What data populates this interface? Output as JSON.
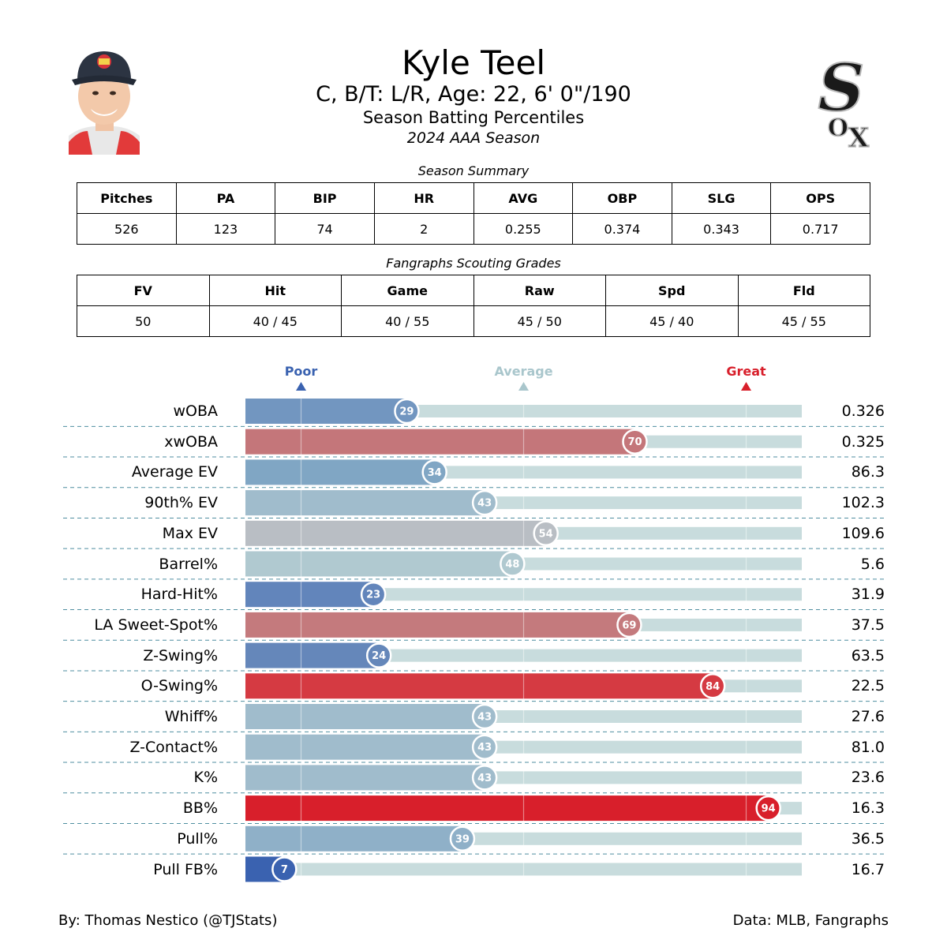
{
  "header": {
    "name": "Kyle Teel",
    "info": "C, B/T: L/R, Age: 22, 6' 0\"/190",
    "subtitle": "Season Batting Percentiles",
    "season": "2024 AAA Season"
  },
  "season_summary": {
    "title": "Season Summary",
    "headers": [
      "Pitches",
      "PA",
      "BIP",
      "HR",
      "AVG",
      "OBP",
      "SLG",
      "OPS"
    ],
    "values": [
      "526",
      "123",
      "74",
      "2",
      "0.255",
      "0.374",
      "0.343",
      "0.717"
    ]
  },
  "scouting_grades": {
    "title": "Fangraphs Scouting Grades",
    "headers": [
      "FV",
      "Hit",
      "Game",
      "Raw",
      "Spd",
      "Fld"
    ],
    "values": [
      "50",
      "40 / 45",
      "40 / 55",
      "45 / 50",
      "45 / 40",
      "45 / 55"
    ]
  },
  "legend": {
    "poor": "Poor",
    "average": "Average",
    "great": "Great",
    "colors": {
      "poor": "#3a62b0",
      "average": "#a9c6cc",
      "great": "#d81f2b"
    }
  },
  "chart_data": {
    "type": "bar",
    "title": "Season Batting Percentiles",
    "xlim": [
      0,
      100
    ],
    "markers": [
      10,
      50,
      90
    ],
    "categories": [
      "wOBA",
      "xwOBA",
      "Average EV",
      "90th% EV",
      "Max EV",
      "Barrel%",
      "Hard-Hit%",
      "LA Sweet-Spot%",
      "Z-Swing%",
      "O-Swing%",
      "Whiff%",
      "Z-Contact%",
      "K%",
      "BB%",
      "Pull%",
      "Pull FB%"
    ],
    "percentiles": [
      29,
      70,
      34,
      43,
      54,
      48,
      23,
      69,
      24,
      84,
      43,
      43,
      43,
      94,
      39,
      7
    ],
    "stat_values": [
      "0.326",
      "0.325",
      "86.3",
      "102.3",
      "109.6",
      "5.6",
      "31.9",
      "37.5",
      "63.5",
      "22.5",
      "27.6",
      "81.0",
      "23.6",
      "16.3",
      "36.5",
      "16.7"
    ],
    "bar_colors": [
      "#7296c0",
      "#c4767a",
      "#80a6c4",
      "#a0bccc",
      "#b9bec4",
      "#b0c9d0",
      "#6285bb",
      "#c47a7d",
      "#6587ba",
      "#d53a42",
      "#a0bccc",
      "#a0bccc",
      "#a0bccc",
      "#d81f2b",
      "#8fb0c8",
      "#3a62b0"
    ],
    "track_color": "#c8dcdd"
  },
  "footer": {
    "credit": "By: Thomas Nestico (@TJStats)",
    "source": "Data: MLB, Fangraphs"
  }
}
